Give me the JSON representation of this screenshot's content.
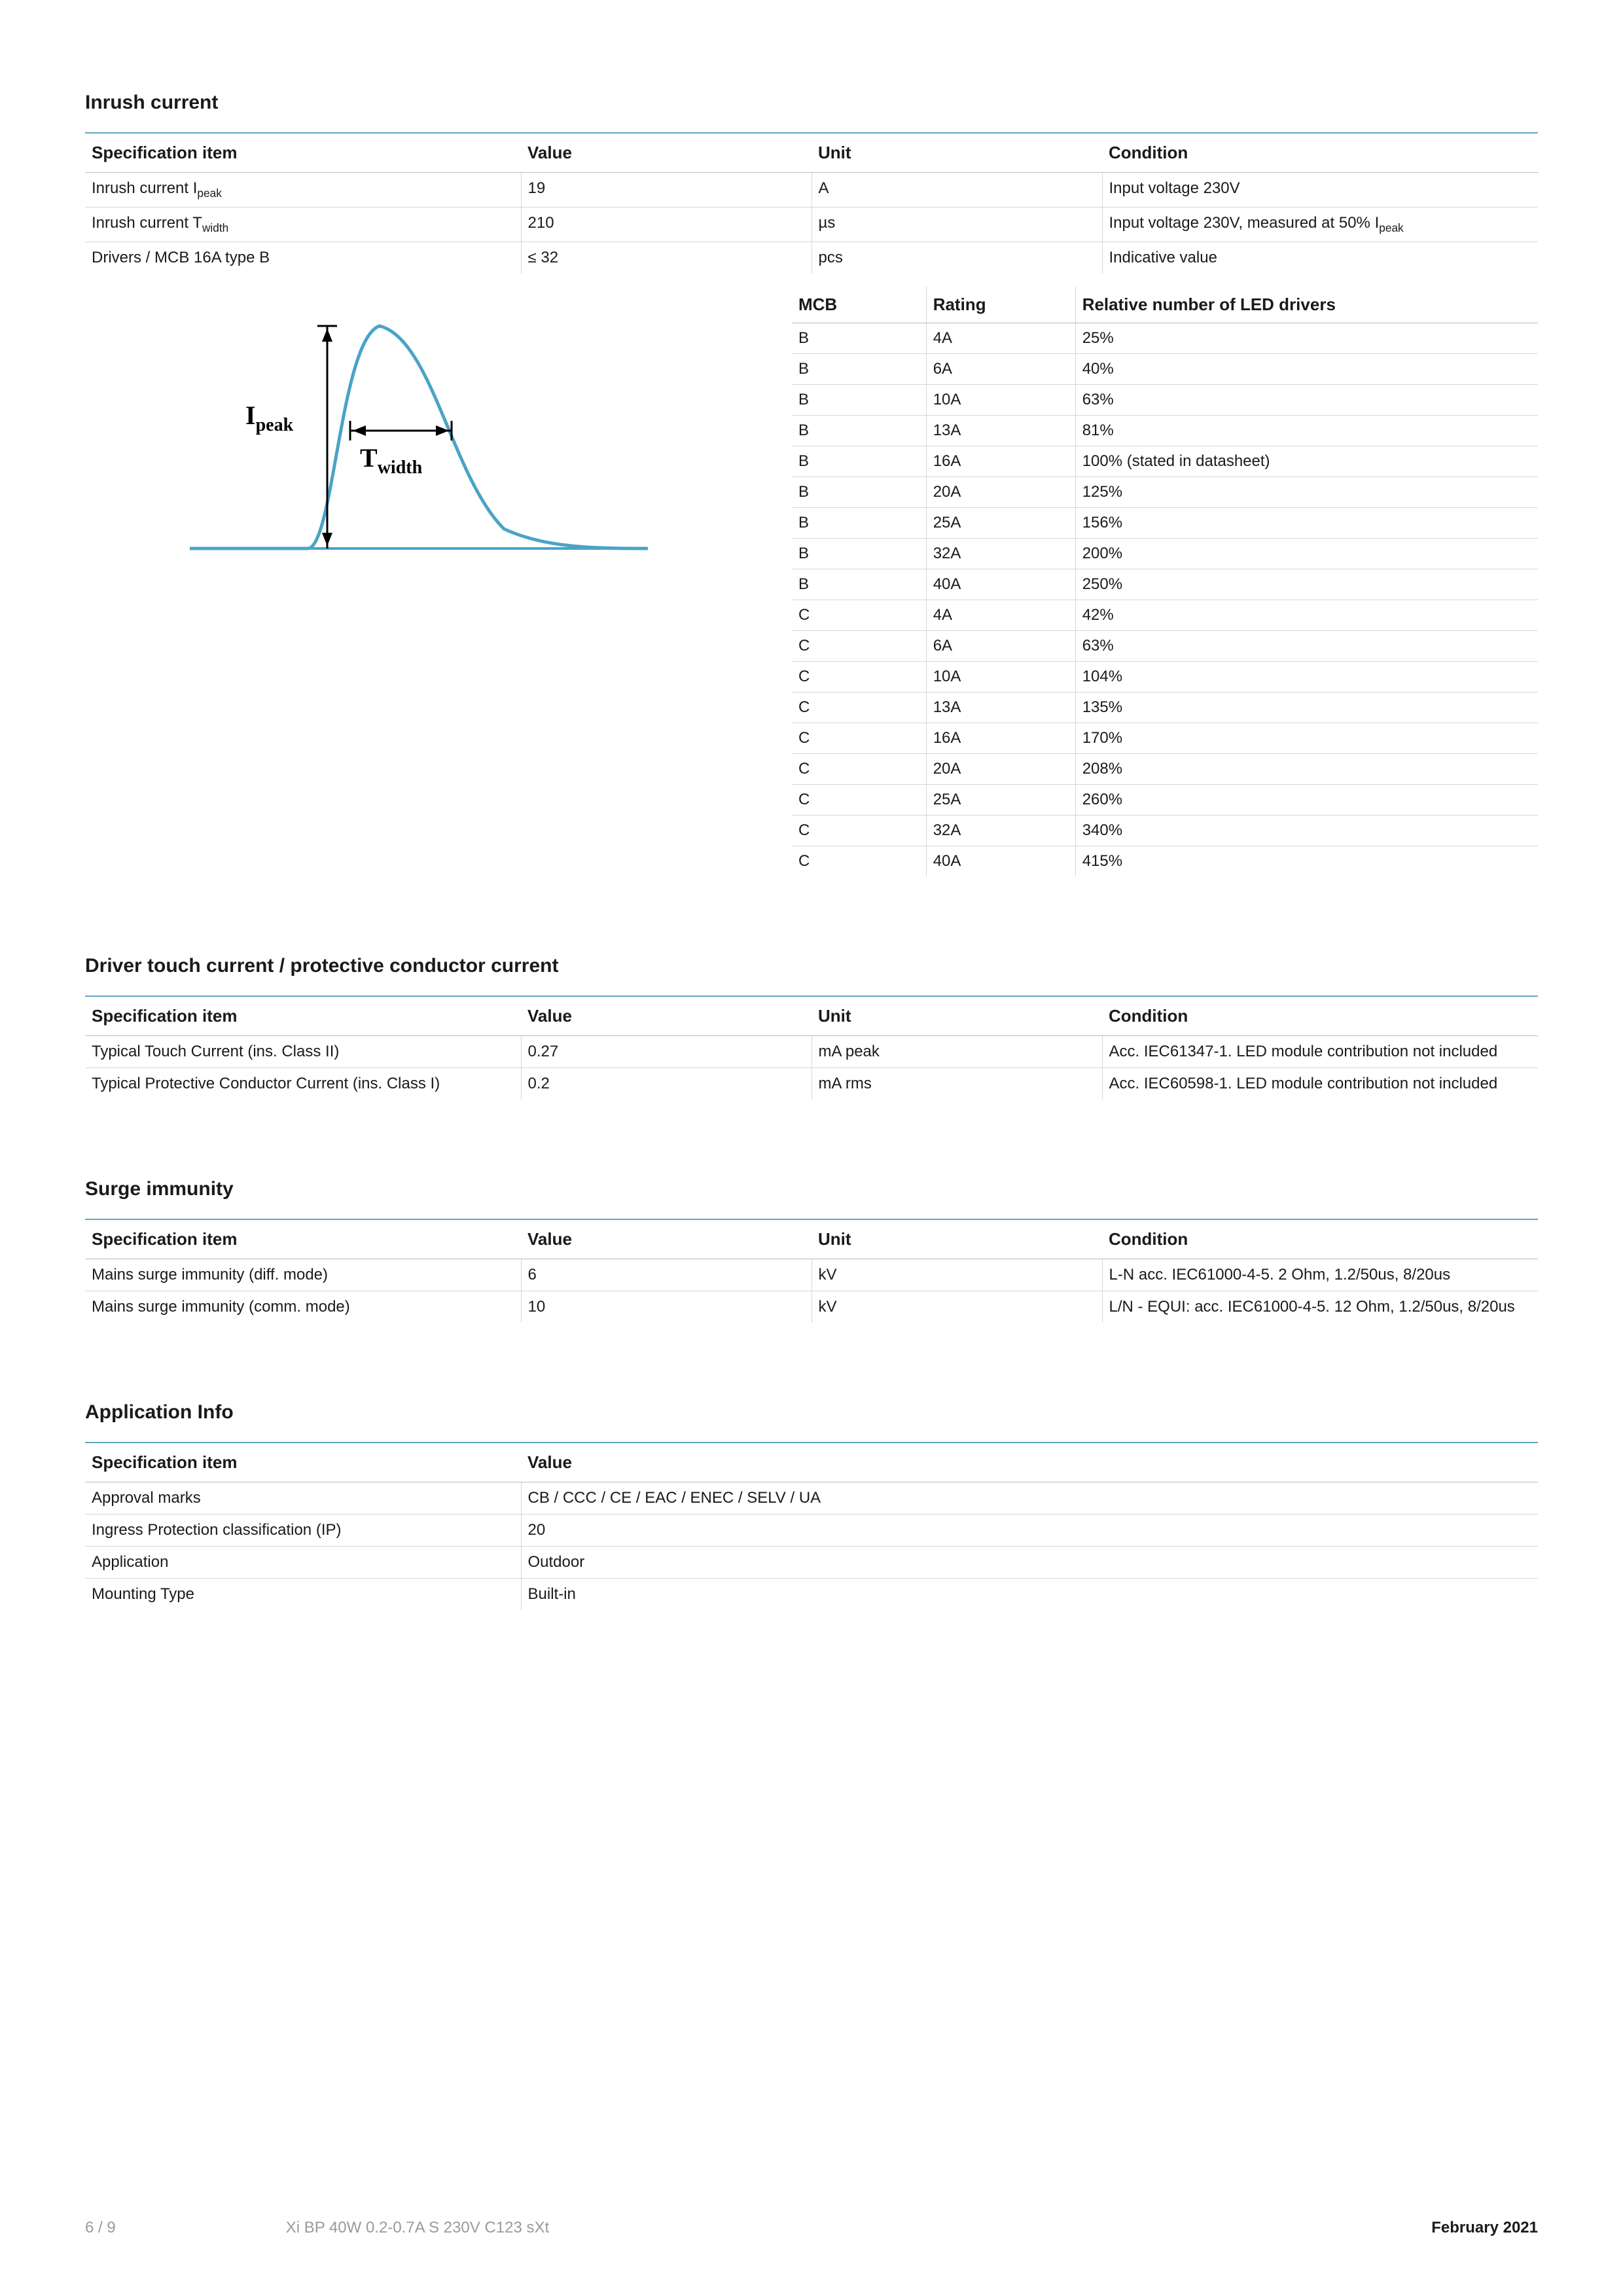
{
  "colors": {
    "accent": "#5fa8c4",
    "curve": "#4aa3c7",
    "border": "#d6d6d6",
    "header_border": "#bcbcbc",
    "text": "#1a1a1a",
    "muted": "#9a9a9a"
  },
  "sections": {
    "inrush": {
      "title": "Inrush current",
      "headers": [
        "Specification item",
        "Value",
        "Unit",
        "Condition"
      ],
      "rows": [
        {
          "item_html": "Inrush current I<sub>peak</sub>",
          "value": "19",
          "unit": "A",
          "condition": "Input voltage 230V"
        },
        {
          "item_html": "Inrush current T<sub>width</sub>",
          "value": "210",
          "unit": "µs",
          "condition_html": "Input voltage 230V, measured at 50% I<sub>peak</sub>"
        },
        {
          "item_html": "Drivers / MCB 16A type B",
          "value": "≤ 32",
          "unit": "pcs",
          "condition": "Indicative value"
        }
      ],
      "diagram": {
        "ipeak_label": "I",
        "ipeak_sub": "peak",
        "twidth_label": "T",
        "twidth_sub": "width",
        "curve_color": "#4aa3c7",
        "baseline_color": "#4aa3c7",
        "arrow_color": "#000000"
      },
      "mcb": {
        "headers": [
          "MCB",
          "Rating",
          "Relative number of LED drivers"
        ],
        "rows": [
          [
            "B",
            "4A",
            "25%"
          ],
          [
            "B",
            "6A",
            "40%"
          ],
          [
            "B",
            "10A",
            "63%"
          ],
          [
            "B",
            "13A",
            "81%"
          ],
          [
            "B",
            "16A",
            "100% (stated in datasheet)"
          ],
          [
            "B",
            "20A",
            "125%"
          ],
          [
            "B",
            "25A",
            "156%"
          ],
          [
            "B",
            "32A",
            "200%"
          ],
          [
            "B",
            "40A",
            "250%"
          ],
          [
            "C",
            "4A",
            "42%"
          ],
          [
            "C",
            "6A",
            "63%"
          ],
          [
            "C",
            "10A",
            "104%"
          ],
          [
            "C",
            "13A",
            "135%"
          ],
          [
            "C",
            "16A",
            "170%"
          ],
          [
            "C",
            "20A",
            "208%"
          ],
          [
            "C",
            "25A",
            "260%"
          ],
          [
            "C",
            "32A",
            "340%"
          ],
          [
            "C",
            "40A",
            "415%"
          ]
        ]
      }
    },
    "touch": {
      "title": "Driver touch current / protective conductor current",
      "headers": [
        "Specification item",
        "Value",
        "Unit",
        "Condition"
      ],
      "rows": [
        [
          "Typical Touch Current (ins. Class II)",
          "0.27",
          "mA peak",
          "Acc. IEC61347-1. LED module contribution not included"
        ],
        [
          "Typical Protective Conductor Current (ins. Class I)",
          "0.2",
          "mA rms",
          "Acc. IEC60598-1. LED module contribution not included"
        ]
      ]
    },
    "surge": {
      "title": "Surge immunity",
      "headers": [
        "Specification item",
        "Value",
        "Unit",
        "Condition"
      ],
      "rows": [
        [
          "Mains surge immunity (diff. mode)",
          "6",
          "kV",
          "L-N acc. IEC61000-4-5. 2 Ohm, 1.2/50us, 8/20us"
        ],
        [
          "Mains surge immunity (comm. mode)",
          "10",
          "kV",
          "L/N - EQUI: acc. IEC61000-4-5. 12 Ohm, 1.2/50us, 8/20us"
        ]
      ]
    },
    "appinfo": {
      "title": "Application Info",
      "headers": [
        "Specification item",
        "Value"
      ],
      "rows": [
        [
          "Approval marks",
          "CB / CCC / CE / EAC / ENEC / SELV / UA"
        ],
        [
          "Ingress Protection classification (IP)",
          "20"
        ],
        [
          "Application",
          "Outdoor"
        ],
        [
          "Mounting Type",
          "Built-in"
        ]
      ]
    }
  },
  "footer": {
    "page": "6 / 9",
    "product": "Xi BP 40W 0.2-0.7A S 230V C123 sXt",
    "date": "February 2021"
  }
}
